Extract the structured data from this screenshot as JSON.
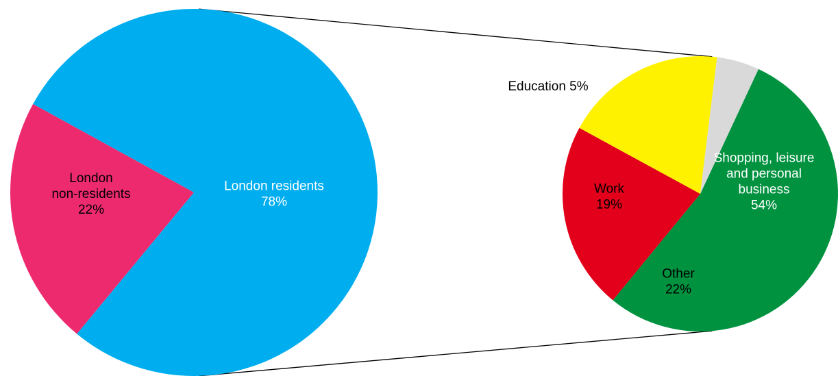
{
  "chart_data": [
    {
      "type": "pie",
      "slices": [
        {
          "name": "London residents",
          "value": 78,
          "label": [
            "London residents",
            "78%"
          ],
          "color": "#00AEEF",
          "text_color": "#FFFFFF"
        },
        {
          "name": "London non-residents",
          "value": 22,
          "label": [
            "London",
            "non-residents",
            "22%"
          ],
          "color": "#EE2A6F",
          "text_color": "#000000"
        }
      ],
      "exploded_slice": "London residents"
    },
    {
      "type": "pie",
      "slices": [
        {
          "name": "Shopping, leisure and personal business",
          "value": 54,
          "label": [
            "Shopping, leisure",
            "and personal",
            "business",
            "54%"
          ],
          "color": "#00923F",
          "text_color": "#FFFFFF"
        },
        {
          "name": "Other",
          "value": 22,
          "label": [
            "Other",
            "22%"
          ],
          "color": "#E2001A",
          "text_color": "#000000"
        },
        {
          "name": "Work",
          "value": 19,
          "label": [
            "Work",
            "19%"
          ],
          "color": "#FFF200",
          "text_color": "#000000"
        },
        {
          "name": "Education",
          "value": 5,
          "label": [
            "Education 5%"
          ],
          "color": "#D9D9D9",
          "text_color": "#000000"
        }
      ]
    }
  ]
}
